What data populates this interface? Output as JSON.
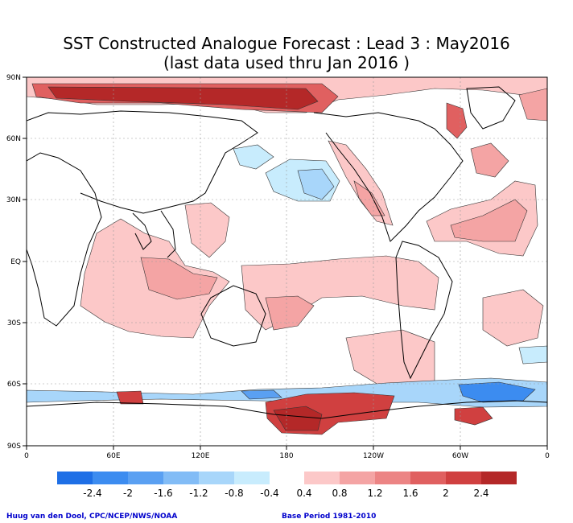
{
  "title_line1": "SST Constructed Analogue Forecast : Lead 3 : May2016",
  "title_line2": "(last data used thru Jan 2016 )",
  "lat_labels": [
    "90N",
    "60N",
    "30N",
    "EQ",
    "30S",
    "60S",
    "90S"
  ],
  "lon_labels": [
    "0",
    "60E",
    "120E",
    "180",
    "120W",
    "60W",
    "0"
  ],
  "colorbar": {
    "neg_labels": [
      "-2.4",
      "-2",
      "-1.6",
      "-1.2",
      "-0.8",
      "-0.4"
    ],
    "pos_labels": [
      "0.4",
      "0.8",
      "1.2",
      "1.6",
      "2",
      "2.4"
    ],
    "neg_colors": [
      "#1e6fe6",
      "#3c8cf0",
      "#5aa0f2",
      "#82bcf6",
      "#a8d6fa",
      "#c8ecfd"
    ],
    "pos_colors": [
      "#fcc8c8",
      "#f4a4a4",
      "#ec8484",
      "#e06060",
      "#d04040",
      "#b42828"
    ]
  },
  "footer_left": "Huug van den Dool, CPC/NCEP/NWS/NOAA",
  "footer_right": "Base Period 1981-2010"
}
